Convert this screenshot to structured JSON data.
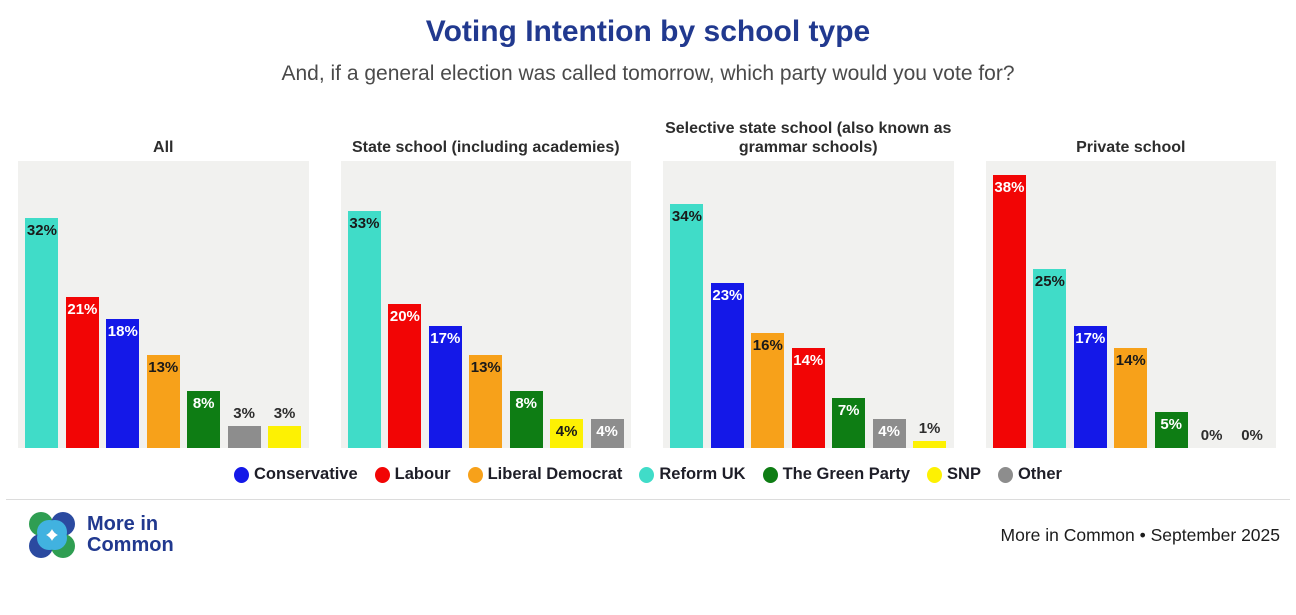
{
  "title": "Voting Intention by school type",
  "subtitle": "And, if a general election was called tomorrow, which party would you vote for?",
  "colors": {
    "title_blue": "#21398f",
    "plot_bg": "#f1f1ef",
    "parties": {
      "Conservative": "#1418e8",
      "Labour": "#f20505",
      "Liberal Democrat": "#f7a11a",
      "Reform UK": "#40dcc8",
      "The Green Party": "#0e7d14",
      "SNP": "#fdf103",
      "Other": "#8d8d8d"
    },
    "label_on_bar": {
      "Conservative": "#ffffff",
      "Labour": "#ffffff",
      "Liberal Democrat": "#1a1a1a",
      "Reform UK": "#1a1a1a",
      "The Green Party": "#ffffff",
      "SNP": "#1a1a1a",
      "Other": "#ffffff"
    },
    "label_outside": "#2d2d2d"
  },
  "legend": [
    "Conservative",
    "Labour",
    "Liberal Democrat",
    "Reform UK",
    "The Green Party",
    "SNP",
    "Other"
  ],
  "chart_data": {
    "type": "bar",
    "unit": "%",
    "ylim": [
      0,
      40
    ],
    "grid": false,
    "legend_position": "bottom",
    "panels": [
      {
        "title": "All",
        "bars": [
          {
            "party": "Reform UK",
            "value": 32,
            "label": "32%"
          },
          {
            "party": "Labour",
            "value": 21,
            "label": "21%"
          },
          {
            "party": "Conservative",
            "value": 18,
            "label": "18%"
          },
          {
            "party": "Liberal Democrat",
            "value": 13,
            "label": "13%"
          },
          {
            "party": "The Green Party",
            "value": 8,
            "label": "8%"
          },
          {
            "party": "Other",
            "value": 3,
            "label": "3%"
          },
          {
            "party": "SNP",
            "value": 3,
            "label": "3%"
          }
        ]
      },
      {
        "title": "State school (including academies)",
        "bars": [
          {
            "party": "Reform UK",
            "value": 33,
            "label": "33%"
          },
          {
            "party": "Labour",
            "value": 20,
            "label": "20%"
          },
          {
            "party": "Conservative",
            "value": 17,
            "label": "17%"
          },
          {
            "party": "Liberal Democrat",
            "value": 13,
            "label": "13%"
          },
          {
            "party": "The Green Party",
            "value": 8,
            "label": "8%"
          },
          {
            "party": "SNP",
            "value": 4,
            "label": "4%"
          },
          {
            "party": "Other",
            "value": 4,
            "label": "4%"
          }
        ]
      },
      {
        "title": "Selective state school (also known as grammar schools)",
        "bars": [
          {
            "party": "Reform UK",
            "value": 34,
            "label": "34%"
          },
          {
            "party": "Conservative",
            "value": 23,
            "label": "23%"
          },
          {
            "party": "Liberal Democrat",
            "value": 16,
            "label": "16%"
          },
          {
            "party": "Labour",
            "value": 14,
            "label": "14%"
          },
          {
            "party": "The Green Party",
            "value": 7,
            "label": "7%"
          },
          {
            "party": "Other",
            "value": 4,
            "label": "4%"
          },
          {
            "party": "SNP",
            "value": 1,
            "label": "1%"
          }
        ]
      },
      {
        "title": "Private school",
        "bars": [
          {
            "party": "Labour",
            "value": 38,
            "label": "38%"
          },
          {
            "party": "Reform UK",
            "value": 25,
            "label": "25%"
          },
          {
            "party": "Conservative",
            "value": 17,
            "label": "17%"
          },
          {
            "party": "Liberal Democrat",
            "value": 14,
            "label": "14%"
          },
          {
            "party": "The Green Party",
            "value": 5,
            "label": "5%"
          },
          {
            "party": "SNP",
            "value": 0,
            "label": "0%"
          },
          {
            "party": "Other",
            "value": 0,
            "label": "0%"
          }
        ]
      }
    ]
  },
  "footer": {
    "brand_line1": "More in",
    "brand_line2": "Common",
    "source": "More in Common • September 2025"
  },
  "logo": {
    "green": "#2f9e52",
    "navy": "#2b4aa0",
    "light_blue": "#41b2e0"
  }
}
